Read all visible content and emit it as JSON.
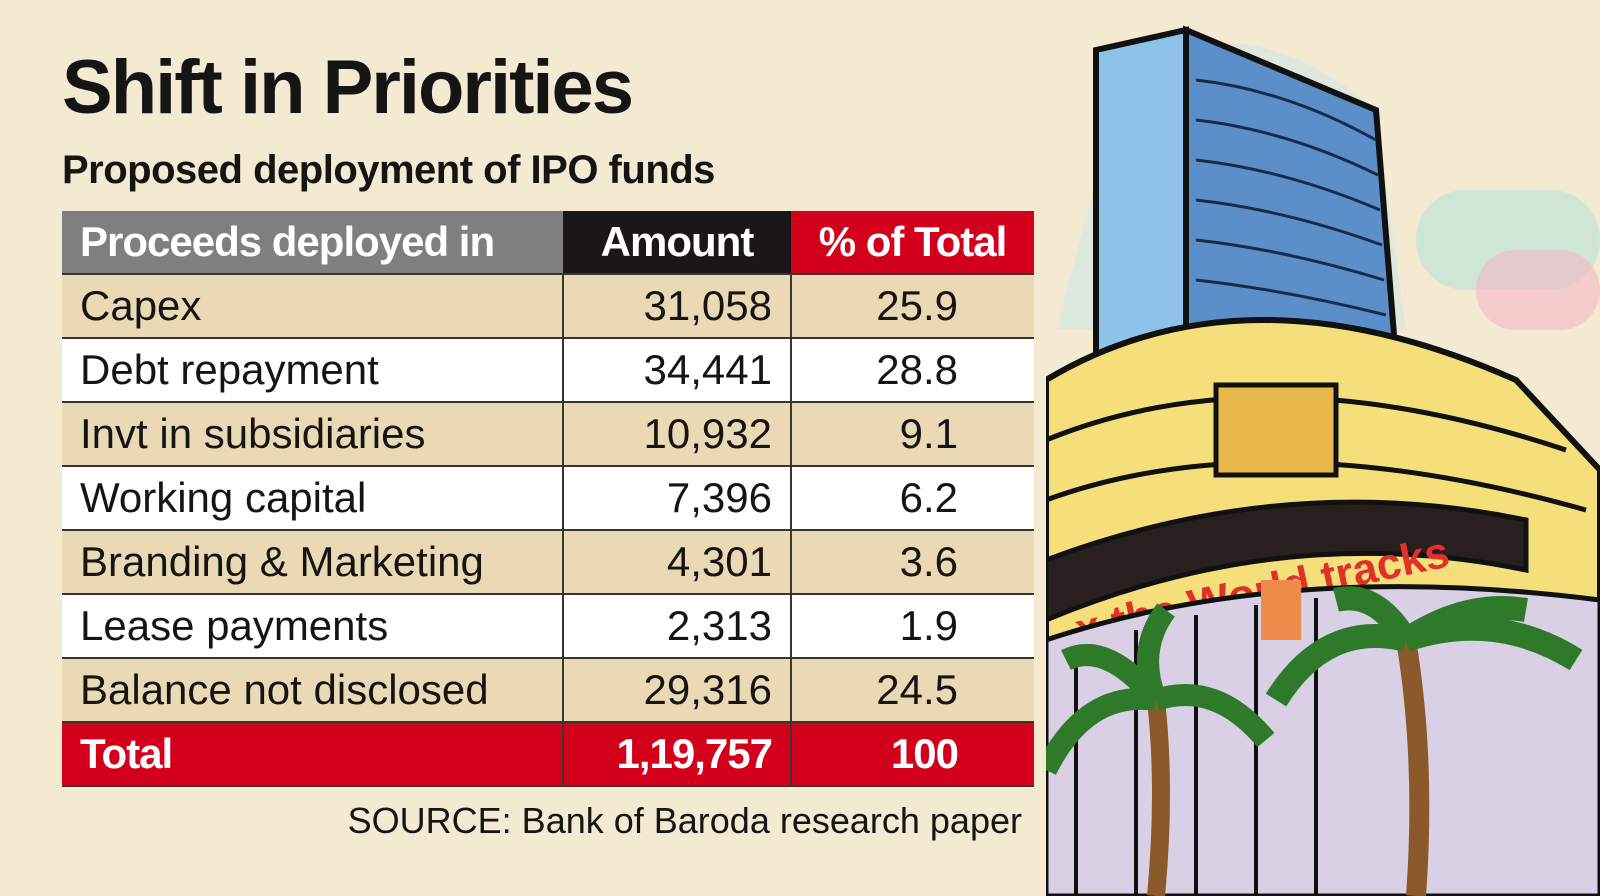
{
  "title": "Shift in Priorities",
  "subtitle": "Proposed deployment of IPO funds",
  "source": "SOURCE: Bank of Baroda research paper",
  "illustration_text": "x the World tracks",
  "colors": {
    "background": "#f4ead2",
    "header_gray": "#7f7f7f",
    "header_black": "#1b1617",
    "accent_red": "#d3001c",
    "row_tan": "#ead9b4",
    "row_white": "#ffffff"
  },
  "chart_data": {
    "type": "table",
    "columns": [
      "Proceeds deployed in",
      "Amount",
      "% of Total"
    ],
    "rows": [
      [
        "Capex",
        "31,058",
        "25.9"
      ],
      [
        "Debt repayment",
        "34,441",
        "28.8"
      ],
      [
        "Invt in subsidiaries",
        "10,932",
        "9.1"
      ],
      [
        "Working capital",
        "7,396",
        "6.2"
      ],
      [
        "Branding & Marketing",
        "4,301",
        "3.6"
      ],
      [
        "Lease payments",
        "2,313",
        "1.9"
      ],
      [
        "Balance not disclosed",
        "29,316",
        "24.5"
      ]
    ],
    "total": [
      "Total",
      "1,19,757",
      "100"
    ]
  }
}
